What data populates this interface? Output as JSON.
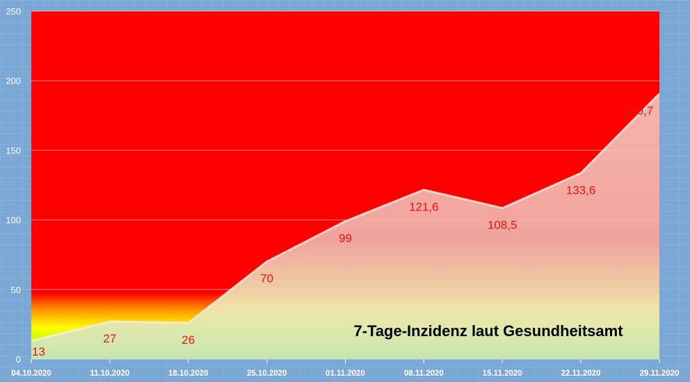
{
  "chart_data": {
    "type": "area",
    "title": "7-Tage-Inzidenz laut Gesundheitsamt",
    "xlabel": "",
    "ylabel": "",
    "categories": [
      "04.10.2020",
      "11.10.2020",
      "18.10.2020",
      "25.10.2020",
      "01.11.2020",
      "08.11.2020",
      "15.11.2020",
      "22.11.2020",
      "29.11.2020"
    ],
    "series": [
      {
        "values": [
          13,
          27,
          26,
          70,
          99,
          121.6,
          108.5,
          133.6,
          190.7
        ],
        "labels": [
          "13",
          "27",
          "26",
          "70",
          "99",
          "121,6",
          "108,5",
          "133,6",
          "190,7"
        ]
      }
    ],
    "ylim": [
      0,
      250
    ],
    "yticks": [
      0,
      50,
      100,
      150,
      200,
      250
    ],
    "ytick_labels": [
      "0",
      "50",
      "100",
      "150",
      "200",
      "250"
    ],
    "grid": true,
    "colors": {
      "page_background": "#7ba7d6",
      "plot_background": "#ff0000",
      "area_fill": "#f0e6c8",
      "label_color": "#e8140c",
      "tick_color": "#ffffff",
      "title_color": "#000000"
    }
  }
}
